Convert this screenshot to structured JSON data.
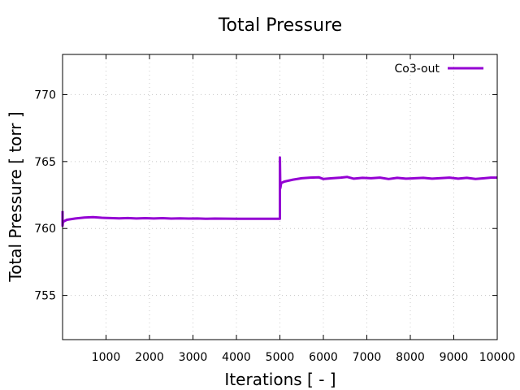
{
  "chart_data": {
    "type": "line",
    "title": "Total Pressure",
    "xlabel": "Iterations [ - ]",
    "ylabel": "Total Pressure [ torr ]",
    "xlim": [
      0,
      10000
    ],
    "ylim": [
      751.7,
      773
    ],
    "xticks": [
      1000,
      2000,
      3000,
      4000,
      5000,
      6000,
      7000,
      8000,
      9000,
      10000
    ],
    "yticks": [
      755,
      760,
      765,
      770
    ],
    "grid": true,
    "legend_position": "top-right",
    "series": [
      {
        "name": "Co3-out",
        "color": "#9400d3",
        "points": [
          [
            0,
            761.3
          ],
          [
            0,
            760.2
          ],
          [
            10,
            760.5
          ],
          [
            100,
            760.65
          ],
          [
            300,
            760.75
          ],
          [
            500,
            760.82
          ],
          [
            700,
            760.85
          ],
          [
            900,
            760.8
          ],
          [
            1100,
            760.78
          ],
          [
            1300,
            760.76
          ],
          [
            1500,
            760.78
          ],
          [
            1700,
            760.75
          ],
          [
            1900,
            760.77
          ],
          [
            2100,
            760.75
          ],
          [
            2300,
            760.77
          ],
          [
            2500,
            760.74
          ],
          [
            2700,
            760.76
          ],
          [
            2900,
            760.74
          ],
          [
            3100,
            760.75
          ],
          [
            3300,
            760.73
          ],
          [
            3500,
            760.74
          ],
          [
            4000,
            760.73
          ],
          [
            4500,
            760.73
          ],
          [
            5000,
            760.73
          ],
          [
            5000,
            765.3
          ],
          [
            5010,
            763.0
          ],
          [
            5030,
            763.4
          ],
          [
            5100,
            763.5
          ],
          [
            5300,
            763.65
          ],
          [
            5500,
            763.75
          ],
          [
            5700,
            763.8
          ],
          [
            5900,
            763.82
          ],
          [
            6000,
            763.7
          ],
          [
            6200,
            763.75
          ],
          [
            6400,
            763.8
          ],
          [
            6550,
            763.85
          ],
          [
            6700,
            763.72
          ],
          [
            6900,
            763.78
          ],
          [
            7100,
            763.75
          ],
          [
            7300,
            763.8
          ],
          [
            7500,
            763.7
          ],
          [
            7700,
            763.78
          ],
          [
            7900,
            763.72
          ],
          [
            8100,
            763.75
          ],
          [
            8300,
            763.78
          ],
          [
            8500,
            763.72
          ],
          [
            8700,
            763.76
          ],
          [
            8900,
            763.8
          ],
          [
            9100,
            763.72
          ],
          [
            9300,
            763.78
          ],
          [
            9500,
            763.7
          ],
          [
            9700,
            763.75
          ],
          [
            9850,
            763.8
          ],
          [
            10000,
            763.8
          ]
        ]
      }
    ]
  }
}
